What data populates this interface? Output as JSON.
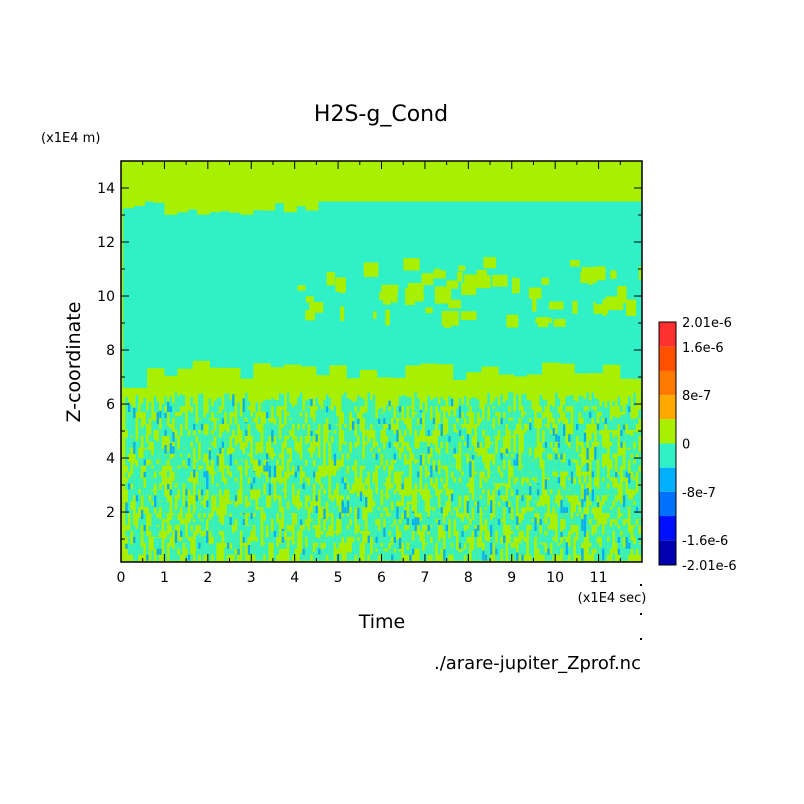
{
  "chart_data": {
    "type": "heatmap",
    "title": "H2S-g_Cond",
    "xlabel": "Time",
    "ylabel": "Z-coordinate",
    "x_unit": "(x1E4 sec)",
    "y_unit": "(x1E4 m)",
    "source_file": "./arare-jupiter_Zprof.nc",
    "xlim": [
      0,
      12
    ],
    "ylim": [
      0.15,
      15
    ],
    "x_ticks": [
      "0",
      "1",
      "2",
      "3",
      "4",
      "5",
      "6",
      "7",
      "8",
      "9",
      "10",
      "11"
    ],
    "y_ticks": [
      "2",
      "4",
      "6",
      "8",
      "10",
      "12",
      "14"
    ],
    "colorbar": {
      "labels": [
        "2.01e-6",
        "1.6e-6",
        "8e-7",
        "0",
        "-8e-7",
        "-1.6e-6",
        "-2.01e-6"
      ],
      "levels": [
        2.01e-06,
        1.6e-06,
        1.2e-06,
        8e-07,
        4e-07,
        0,
        -4e-07,
        -8e-07,
        -1.2e-06,
        -1.6e-06,
        -2.01e-06
      ],
      "colors": [
        "#ff3030",
        "#ff5000",
        "#ff7800",
        "#ffa800",
        "#a8f000",
        "#30f0c8",
        "#00b0ff",
        "#0070ff",
        "#0010ff",
        "#0000b0"
      ]
    },
    "regions": [
      {
        "name": "top zero layer",
        "y_range": [
          13.5,
          15
        ],
        "level": "0"
      },
      {
        "name": "upper negative layer",
        "y_range": [
          6.5,
          13.5
        ],
        "level": "-4e-7 to 0"
      },
      {
        "name": "lower mixed layer",
        "y_range": [
          0.15,
          6.3
        ],
        "level": "mixed 0 / -4e-7 / -8e-7"
      }
    ]
  }
}
